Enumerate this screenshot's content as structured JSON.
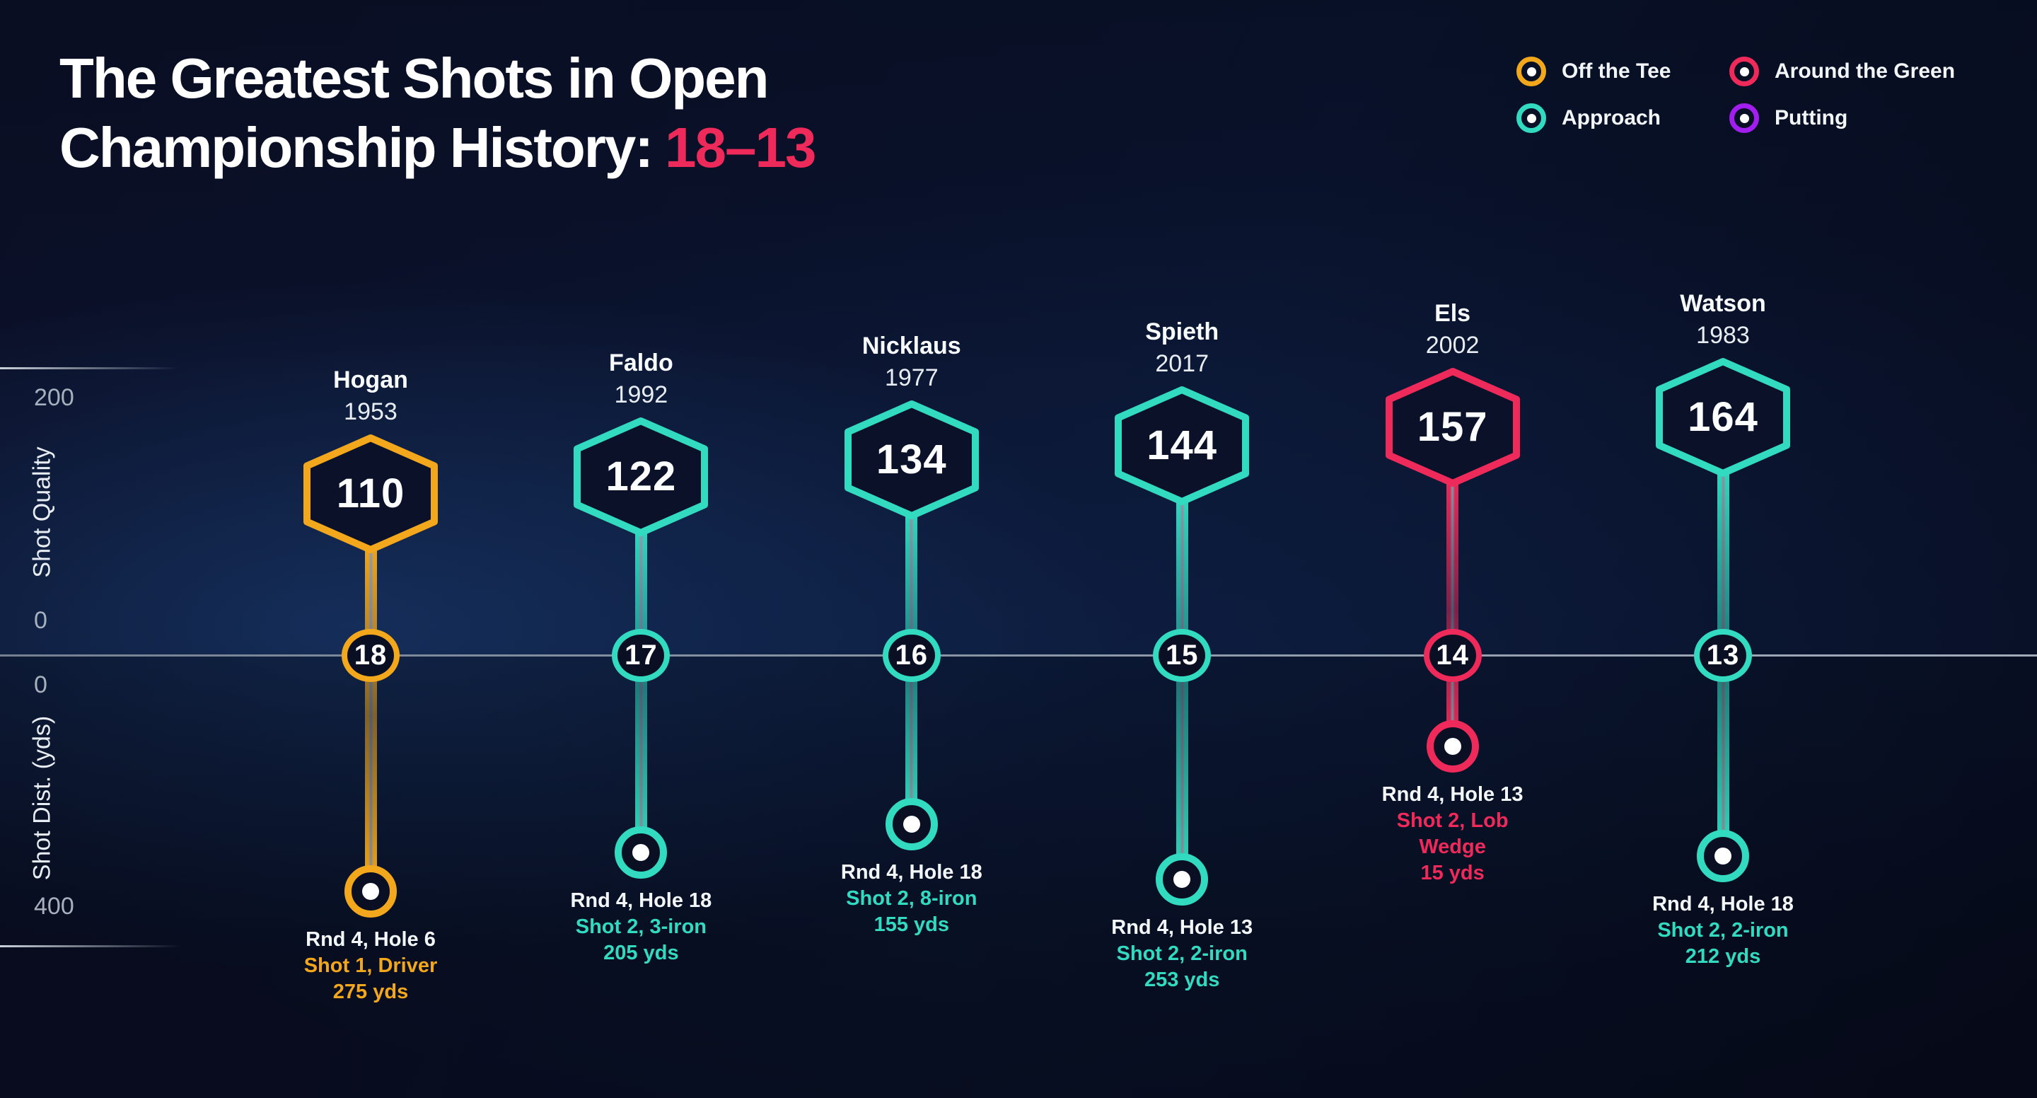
{
  "title": {
    "line1": "The Greatest Shots in Open",
    "line2": "Championship History:",
    "highlight": "18–13"
  },
  "colors": {
    "tee": "#F2A71C",
    "approach": "#32DAC0",
    "green": "#EE2A5B",
    "putting": "#A21EEF"
  },
  "legend": [
    {
      "label": "Off the Tee",
      "color_key": "tee"
    },
    {
      "label": "Around the Green",
      "color_key": "green"
    },
    {
      "label": "Approach",
      "color_key": "approach"
    },
    {
      "label": "Putting",
      "color_key": "putting"
    }
  ],
  "axes": {
    "quality": {
      "label": "Shot Quality",
      "top_tick": "200",
      "bottom_tick": "0"
    },
    "distance": {
      "label": "Shot Dist. (yds)",
      "top_tick": "0",
      "bottom_tick": "400"
    }
  },
  "shots": [
    {
      "player": "Hogan",
      "year": "1953",
      "quality_label": "110",
      "rank_label": "18",
      "caption": [
        "Rnd 4, Hole 6",
        "Shot 1, Driver",
        "275 yds"
      ],
      "category": "tee",
      "quality": 110,
      "distance": 275
    },
    {
      "player": "Faldo",
      "year": "1992",
      "quality_label": "122",
      "rank_label": "17",
      "caption": [
        "Rnd 4, Hole 18",
        "Shot 2, 3-iron",
        "205 yds"
      ],
      "category": "approach",
      "quality": 122,
      "distance": 205
    },
    {
      "player": "Nicklaus",
      "year": "1977",
      "quality_label": "134",
      "rank_label": "16",
      "caption": [
        "Rnd 4, Hole 18",
        "Shot 2, 8-iron",
        "155 yds"
      ],
      "category": "approach",
      "quality": 134,
      "distance": 155
    },
    {
      "player": "Spieth",
      "year": "2017",
      "quality_label": "144",
      "rank_label": "15",
      "caption": [
        "Rnd 4, Hole 13",
        "Shot 2, 2-iron",
        "253 yds"
      ],
      "category": "approach",
      "quality": 144,
      "distance": 253
    },
    {
      "player": "Els",
      "year": "2002",
      "quality_label": "157",
      "rank_label": "14",
      "caption": [
        "Rnd 4, Hole 13",
        "Shot 2, Lob",
        "Wedge",
        "15 yds"
      ],
      "category": "green",
      "quality": 157,
      "distance": 15
    },
    {
      "player": "Watson",
      "year": "1983",
      "quality_label": "164",
      "rank_label": "13",
      "caption": [
        "Rnd 4, Hole 18",
        "Shot 2, 2-iron",
        "212 yds"
      ],
      "category": "approach",
      "quality": 164,
      "distance": 212
    }
  ],
  "chart_data": {
    "type": "scatter",
    "title": "The Greatest Shots in Open Championship History: 18–13",
    "legend_position": "top-right",
    "legend_entries": [
      "Off the Tee",
      "Around the Green",
      "Approach",
      "Putting"
    ],
    "axes": [
      {
        "label": "Shot Quality",
        "range": [
          0,
          200
        ],
        "direction": "up-from-baseline"
      },
      {
        "label": "Shot Dist. (yds)",
        "range": [
          0,
          400
        ],
        "direction": "down-from-baseline"
      }
    ],
    "series": [
      {
        "rank": 18,
        "player": "Hogan",
        "year": 1953,
        "category": "Off the Tee",
        "shot_quality": 110,
        "shot_distance_yds": 275,
        "detail": "Rnd 4, Hole 6, Shot 1, Driver"
      },
      {
        "rank": 17,
        "player": "Faldo",
        "year": 1992,
        "category": "Approach",
        "shot_quality": 122,
        "shot_distance_yds": 205,
        "detail": "Rnd 4, Hole 18, Shot 2, 3-iron"
      },
      {
        "rank": 16,
        "player": "Nicklaus",
        "year": 1977,
        "category": "Approach",
        "shot_quality": 134,
        "shot_distance_yds": 155,
        "detail": "Rnd 4, Hole 18, Shot 2, 8-iron"
      },
      {
        "rank": 15,
        "player": "Spieth",
        "year": 2017,
        "category": "Approach",
        "shot_quality": 144,
        "shot_distance_yds": 253,
        "detail": "Rnd 4, Hole 13, Shot 2, 2-iron"
      },
      {
        "rank": 14,
        "player": "Els",
        "year": 2002,
        "category": "Around the Green",
        "shot_quality": 157,
        "shot_distance_yds": 15,
        "detail": "Rnd 4, Hole 13, Shot 2, Lob Wedge"
      },
      {
        "rank": 13,
        "player": "Watson",
        "year": 1983,
        "category": "Approach",
        "shot_quality": 164,
        "shot_distance_yds": 212,
        "detail": "Rnd 4, Hole 18, Shot 2, 2-iron"
      }
    ]
  }
}
